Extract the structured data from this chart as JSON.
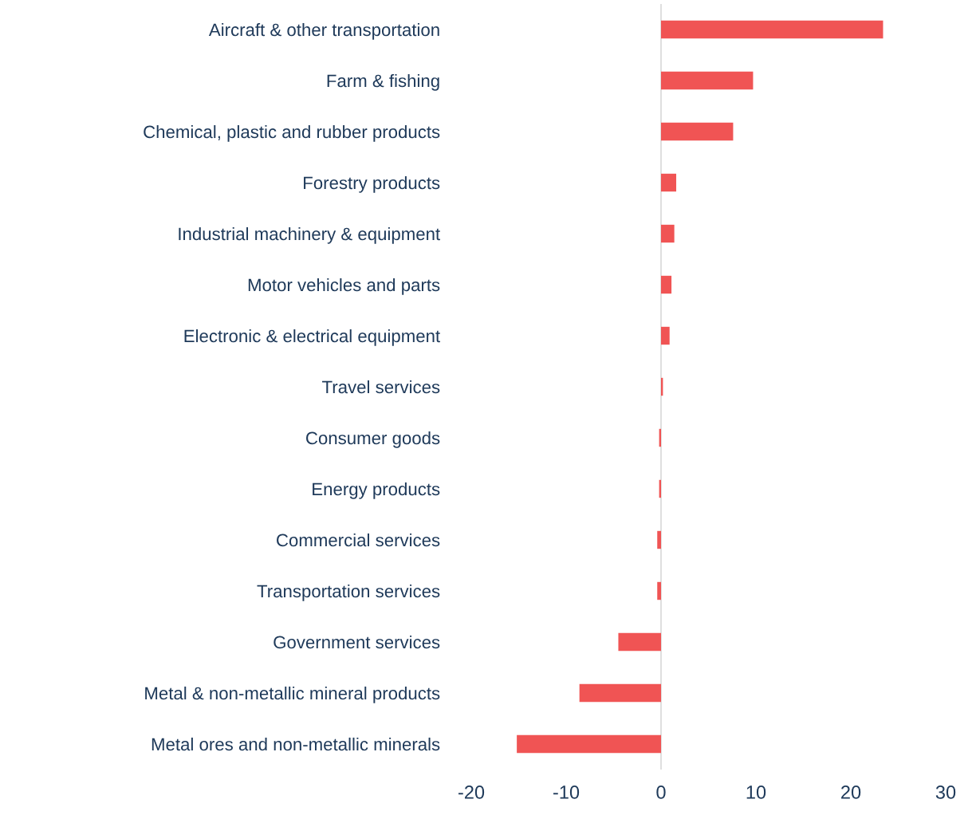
{
  "chart_data": {
    "type": "bar",
    "orientation": "horizontal",
    "categories": [
      "Aircraft & other transportation",
      "Farm & fishing",
      "Chemical, plastic and rubber products",
      "Forestry products",
      "Industrial machinery & equipment",
      "Motor vehicles and parts",
      "Electronic & electrical equipment",
      "Travel services",
      "Consumer goods",
      "Energy products",
      "Commercial services",
      "Transportation services",
      "Government services",
      "Metal & non-metallic mineral products",
      "Metal ores and non-metallic minerals"
    ],
    "values": [
      23.4,
      9.7,
      7.6,
      1.6,
      1.4,
      1.1,
      0.9,
      0.2,
      -0.2,
      -0.2,
      -0.4,
      -0.4,
      -4.5,
      -8.6,
      -15.2
    ],
    "color": "#f05454",
    "xlim": [
      -20,
      30
    ],
    "xticks": [
      -20,
      -10,
      0,
      10,
      20,
      30
    ],
    "ref_lines": [
      {
        "axis": "x",
        "value": 0,
        "color": "#d9d9d9"
      }
    ],
    "grid": false
  }
}
